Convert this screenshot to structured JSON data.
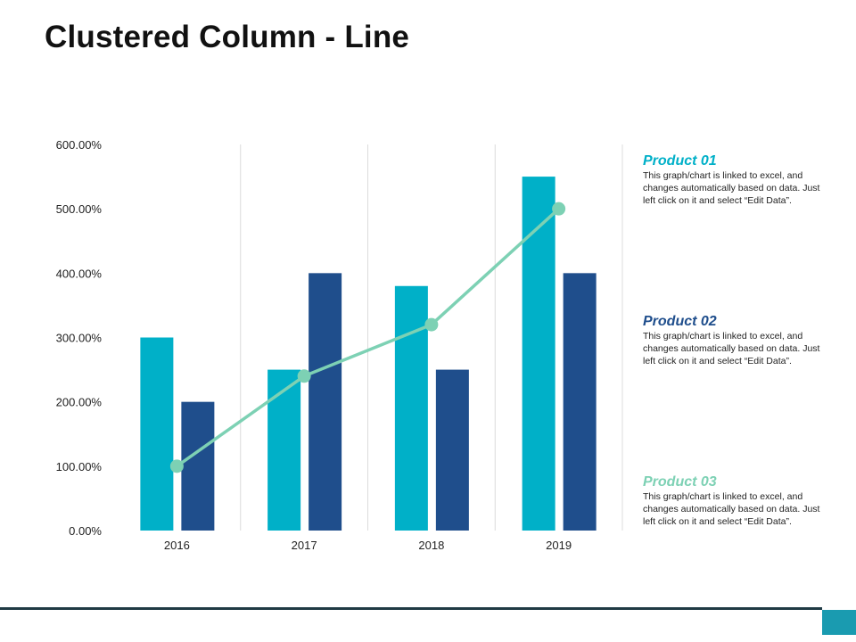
{
  "page": {
    "title": "Clustered Column - Line"
  },
  "colors": {
    "product01": "#00b0c8",
    "product02": "#1f4e8c",
    "product03": "#7dd1b4",
    "accent_square": "#1a9bb0"
  },
  "chart_data": {
    "type": "bar",
    "categories": [
      "2016",
      "2017",
      "2018",
      "2019"
    ],
    "series": [
      {
        "name": "Product 01",
        "kind": "bar",
        "values": [
          300,
          250,
          380,
          550
        ]
      },
      {
        "name": "Product 02",
        "kind": "bar",
        "values": [
          200,
          400,
          250,
          400
        ]
      },
      {
        "name": "Product 03",
        "kind": "line",
        "values": [
          100,
          240,
          320,
          500
        ]
      }
    ],
    "y_ticks": [
      "0.00%",
      "100.00%",
      "200.00%",
      "300.00%",
      "400.00%",
      "500.00%",
      "600.00%"
    ],
    "ylim": [
      0,
      600
    ],
    "y_unit": "%",
    "title": "",
    "xlabel": "",
    "ylabel": "",
    "grid": "vertical category separators",
    "legend_position": "right"
  },
  "legend": [
    {
      "title": "Product 01",
      "description": "This graph/chart is linked to excel, and changes automatically based on data. Just left click on it and select “Edit Data”."
    },
    {
      "title": "Product 02",
      "description": "This graph/chart is linked to excel, and changes automatically based on data. Just left click on it and select “Edit Data”."
    },
    {
      "title": "Product 03",
      "description": "This graph/chart is linked to excel, and changes automatically based on data. Just left click on it and select “Edit Data”."
    }
  ]
}
